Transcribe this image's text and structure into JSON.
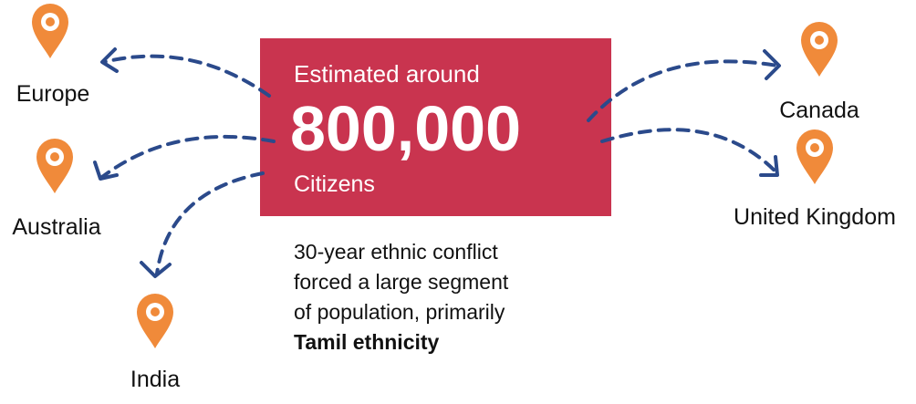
{
  "headline": {
    "prefix": "Estimated around",
    "number": "800,000",
    "suffix": "Citizens"
  },
  "description": {
    "lines": [
      "30-year ethnic conflict",
      "forced a large segment",
      "of population, primarily"
    ],
    "emphasis": "Tamil ethnicity"
  },
  "destinations": [
    "Europe",
    "Australia",
    "India",
    "Canada",
    "United Kingdom"
  ]
}
